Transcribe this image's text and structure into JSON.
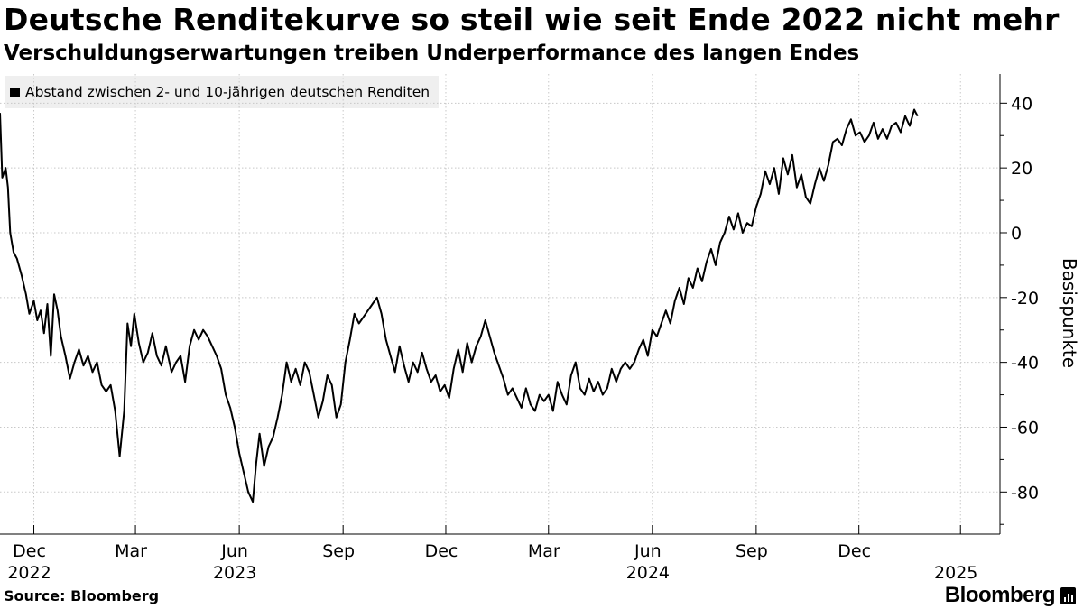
{
  "header": {
    "title": "Deutsche Renditekurve so steil wie seit Ende 2022 nicht mehr",
    "subtitle": "Verschuldungserwartungen treiben Underperformance des langen Endes"
  },
  "footer": {
    "source": "Source: Bloomberg",
    "brand": "Bloomberg"
  },
  "colors": {
    "line": "#000000",
    "grid": "#c8c8c8",
    "legend_bg": "#efefef"
  },
  "chart_data": {
    "type": "line",
    "title": "Deutsche Renditekurve so steil wie seit Ende 2022 nicht mehr",
    "subtitle": "Verschuldungserwartungen treiben Underperformance des langen Endes",
    "ylabel": "Basispunkte",
    "xlabel": "",
    "ylim": [
      -93,
      49
    ],
    "xlim": [
      "2022-11-01",
      "2025-04-05"
    ],
    "y_ticks": [
      40,
      20,
      0,
      -20,
      -40,
      -60,
      -80
    ],
    "y_axis_side": "right",
    "grid": "horizontal dotted + vertical dotted at month ticks",
    "legend_position": "top-left",
    "x_ticks": [
      {
        "date": "2022-12-01",
        "label": "Dec",
        "year": "2022"
      },
      {
        "date": "2023-03-01",
        "label": "Mar",
        "year": ""
      },
      {
        "date": "2023-06-01",
        "label": "Jun",
        "year": "2023"
      },
      {
        "date": "2023-09-01",
        "label": "Sep",
        "year": ""
      },
      {
        "date": "2023-12-01",
        "label": "Dec",
        "year": ""
      },
      {
        "date": "2024-03-01",
        "label": "Mar",
        "year": ""
      },
      {
        "date": "2024-06-01",
        "label": "Jun",
        "year": "2024"
      },
      {
        "date": "2024-09-01",
        "label": "Sep",
        "year": ""
      },
      {
        "date": "2024-12-01",
        "label": "Dec",
        "year": ""
      },
      {
        "date": "2025-03-01",
        "label": "",
        "year": "2025"
      }
    ],
    "series": [
      {
        "name": "Abstand zwischen 2- und 10-jährigen deutschen Renditen",
        "points": [
          [
            "2022-11-01",
            37
          ],
          [
            "2022-11-03",
            17
          ],
          [
            "2022-11-06",
            20
          ],
          [
            "2022-11-08",
            14
          ],
          [
            "2022-11-10",
            0
          ],
          [
            "2022-11-13",
            -6
          ],
          [
            "2022-11-16",
            -8
          ],
          [
            "2022-11-20",
            -13
          ],
          [
            "2022-11-24",
            -19
          ],
          [
            "2022-11-27",
            -25
          ],
          [
            "2022-12-01",
            -21
          ],
          [
            "2022-12-04",
            -27
          ],
          [
            "2022-12-07",
            -24
          ],
          [
            "2022-12-10",
            -31
          ],
          [
            "2022-12-13",
            -22
          ],
          [
            "2022-12-16",
            -38
          ],
          [
            "2022-12-19",
            -19
          ],
          [
            "2022-12-22",
            -24
          ],
          [
            "2022-12-25",
            -32
          ],
          [
            "2022-12-29",
            -38
          ],
          [
            "2023-01-02",
            -45
          ],
          [
            "2023-01-06",
            -40
          ],
          [
            "2023-01-10",
            -36
          ],
          [
            "2023-01-14",
            -41
          ],
          [
            "2023-01-18",
            -38
          ],
          [
            "2023-01-22",
            -43
          ],
          [
            "2023-01-26",
            -40
          ],
          [
            "2023-01-30",
            -47
          ],
          [
            "2023-02-03",
            -49
          ],
          [
            "2023-02-07",
            -47
          ],
          [
            "2023-02-11",
            -55
          ],
          [
            "2023-02-15",
            -69
          ],
          [
            "2023-02-19",
            -55
          ],
          [
            "2023-02-22",
            -28
          ],
          [
            "2023-02-25",
            -35
          ],
          [
            "2023-02-28",
            -25
          ],
          [
            "2023-03-04",
            -34
          ],
          [
            "2023-03-08",
            -40
          ],
          [
            "2023-03-12",
            -37
          ],
          [
            "2023-03-16",
            -31
          ],
          [
            "2023-03-20",
            -38
          ],
          [
            "2023-03-24",
            -41
          ],
          [
            "2023-03-28",
            -35
          ],
          [
            "2023-04-02",
            -43
          ],
          [
            "2023-04-06",
            -40
          ],
          [
            "2023-04-10",
            -38
          ],
          [
            "2023-04-14",
            -46
          ],
          [
            "2023-04-18",
            -35
          ],
          [
            "2023-04-22",
            -30
          ],
          [
            "2023-04-26",
            -33
          ],
          [
            "2023-04-30",
            -30
          ],
          [
            "2023-05-04",
            -32
          ],
          [
            "2023-05-08",
            -35
          ],
          [
            "2023-05-12",
            -38
          ],
          [
            "2023-05-16",
            -42
          ],
          [
            "2023-05-20",
            -50
          ],
          [
            "2023-05-24",
            -54
          ],
          [
            "2023-05-28",
            -60
          ],
          [
            "2023-06-01",
            -68
          ],
          [
            "2023-06-05",
            -74
          ],
          [
            "2023-06-09",
            -80
          ],
          [
            "2023-06-13",
            -83
          ],
          [
            "2023-06-16",
            -71
          ],
          [
            "2023-06-19",
            -62
          ],
          [
            "2023-06-23",
            -72
          ],
          [
            "2023-06-27",
            -66
          ],
          [
            "2023-07-01",
            -63
          ],
          [
            "2023-07-05",
            -57
          ],
          [
            "2023-07-09",
            -50
          ],
          [
            "2023-07-13",
            -40
          ],
          [
            "2023-07-17",
            -46
          ],
          [
            "2023-07-21",
            -42
          ],
          [
            "2023-07-25",
            -47
          ],
          [
            "2023-07-29",
            -40
          ],
          [
            "2023-08-02",
            -43
          ],
          [
            "2023-08-06",
            -50
          ],
          [
            "2023-08-10",
            -57
          ],
          [
            "2023-08-14",
            -52
          ],
          [
            "2023-08-18",
            -44
          ],
          [
            "2023-08-22",
            -47
          ],
          [
            "2023-08-26",
            -57
          ],
          [
            "2023-08-30",
            -53
          ],
          [
            "2023-09-03",
            -40
          ],
          [
            "2023-09-07",
            -33
          ],
          [
            "2023-09-11",
            -25
          ],
          [
            "2023-09-15",
            -28
          ],
          [
            "2023-09-19",
            -26
          ],
          [
            "2023-09-23",
            -24
          ],
          [
            "2023-09-27",
            -22
          ],
          [
            "2023-10-01",
            -20
          ],
          [
            "2023-10-05",
            -25
          ],
          [
            "2023-10-09",
            -33
          ],
          [
            "2023-10-13",
            -38
          ],
          [
            "2023-10-17",
            -43
          ],
          [
            "2023-10-21",
            -35
          ],
          [
            "2023-10-25",
            -41
          ],
          [
            "2023-10-29",
            -46
          ],
          [
            "2023-11-02",
            -40
          ],
          [
            "2023-11-06",
            -43
          ],
          [
            "2023-11-10",
            -37
          ],
          [
            "2023-11-14",
            -42
          ],
          [
            "2023-11-18",
            -46
          ],
          [
            "2023-11-22",
            -44
          ],
          [
            "2023-11-26",
            -49
          ],
          [
            "2023-11-30",
            -47
          ],
          [
            "2023-12-04",
            -51
          ],
          [
            "2023-12-08",
            -42
          ],
          [
            "2023-12-12",
            -36
          ],
          [
            "2023-12-16",
            -43
          ],
          [
            "2023-12-20",
            -34
          ],
          [
            "2023-12-24",
            -40
          ],
          [
            "2023-12-28",
            -35
          ],
          [
            "2024-01-01",
            -32
          ],
          [
            "2024-01-05",
            -27
          ],
          [
            "2024-01-09",
            -32
          ],
          [
            "2024-01-13",
            -37
          ],
          [
            "2024-01-17",
            -41
          ],
          [
            "2024-01-21",
            -45
          ],
          [
            "2024-01-25",
            -50
          ],
          [
            "2024-01-29",
            -48
          ],
          [
            "2024-02-02",
            -51
          ],
          [
            "2024-02-06",
            -54
          ],
          [
            "2024-02-10",
            -48
          ],
          [
            "2024-02-14",
            -53
          ],
          [
            "2024-02-18",
            -55
          ],
          [
            "2024-02-22",
            -50
          ],
          [
            "2024-02-26",
            -52
          ],
          [
            "2024-03-01",
            -50
          ],
          [
            "2024-03-05",
            -55
          ],
          [
            "2024-03-09",
            -46
          ],
          [
            "2024-03-13",
            -50
          ],
          [
            "2024-03-17",
            -53
          ],
          [
            "2024-03-21",
            -44
          ],
          [
            "2024-03-25",
            -40
          ],
          [
            "2024-03-29",
            -48
          ],
          [
            "2024-04-02",
            -50
          ],
          [
            "2024-04-06",
            -45
          ],
          [
            "2024-04-10",
            -49
          ],
          [
            "2024-04-14",
            -46
          ],
          [
            "2024-04-18",
            -50
          ],
          [
            "2024-04-22",
            -48
          ],
          [
            "2024-04-26",
            -42
          ],
          [
            "2024-04-30",
            -46
          ],
          [
            "2024-05-04",
            -42
          ],
          [
            "2024-05-08",
            -40
          ],
          [
            "2024-05-12",
            -42
          ],
          [
            "2024-05-16",
            -40
          ],
          [
            "2024-05-20",
            -36
          ],
          [
            "2024-05-24",
            -33
          ],
          [
            "2024-05-28",
            -38
          ],
          [
            "2024-06-01",
            -30
          ],
          [
            "2024-06-05",
            -32
          ],
          [
            "2024-06-09",
            -28
          ],
          [
            "2024-06-13",
            -24
          ],
          [
            "2024-06-17",
            -28
          ],
          [
            "2024-06-21",
            -21
          ],
          [
            "2024-06-25",
            -17
          ],
          [
            "2024-06-29",
            -22
          ],
          [
            "2024-07-03",
            -14
          ],
          [
            "2024-07-07",
            -17
          ],
          [
            "2024-07-11",
            -11
          ],
          [
            "2024-07-15",
            -15
          ],
          [
            "2024-07-19",
            -9
          ],
          [
            "2024-07-23",
            -5
          ],
          [
            "2024-07-27",
            -10
          ],
          [
            "2024-07-31",
            -3
          ],
          [
            "2024-08-04",
            0
          ],
          [
            "2024-08-08",
            5
          ],
          [
            "2024-08-12",
            1
          ],
          [
            "2024-08-16",
            6
          ],
          [
            "2024-08-20",
            0
          ],
          [
            "2024-08-24",
            3
          ],
          [
            "2024-08-28",
            2
          ],
          [
            "2024-09-01",
            8
          ],
          [
            "2024-09-05",
            12
          ],
          [
            "2024-09-09",
            19
          ],
          [
            "2024-09-13",
            15
          ],
          [
            "2024-09-17",
            20
          ],
          [
            "2024-09-21",
            12
          ],
          [
            "2024-09-25",
            23
          ],
          [
            "2024-09-29",
            18
          ],
          [
            "2024-10-03",
            24
          ],
          [
            "2024-10-07",
            14
          ],
          [
            "2024-10-11",
            18
          ],
          [
            "2024-10-15",
            11
          ],
          [
            "2024-10-19",
            9
          ],
          [
            "2024-10-23",
            15
          ],
          [
            "2024-10-27",
            20
          ],
          [
            "2024-10-31",
            16
          ],
          [
            "2024-11-04",
            21
          ],
          [
            "2024-11-08",
            28
          ],
          [
            "2024-11-12",
            29
          ],
          [
            "2024-11-16",
            27
          ],
          [
            "2024-11-20",
            32
          ],
          [
            "2024-11-24",
            35
          ],
          [
            "2024-11-28",
            30
          ],
          [
            "2024-12-02",
            31
          ],
          [
            "2024-12-06",
            28
          ],
          [
            "2024-12-10",
            30
          ],
          [
            "2024-12-14",
            34
          ],
          [
            "2024-12-18",
            29
          ],
          [
            "2024-12-22",
            32
          ],
          [
            "2024-12-26",
            29
          ],
          [
            "2024-12-30",
            33
          ],
          [
            "2025-01-03",
            34
          ],
          [
            "2025-01-07",
            31
          ],
          [
            "2025-01-11",
            36
          ],
          [
            "2025-01-15",
            33
          ],
          [
            "2025-01-19",
            38
          ],
          [
            "2025-01-22",
            36
          ]
        ]
      }
    ]
  }
}
